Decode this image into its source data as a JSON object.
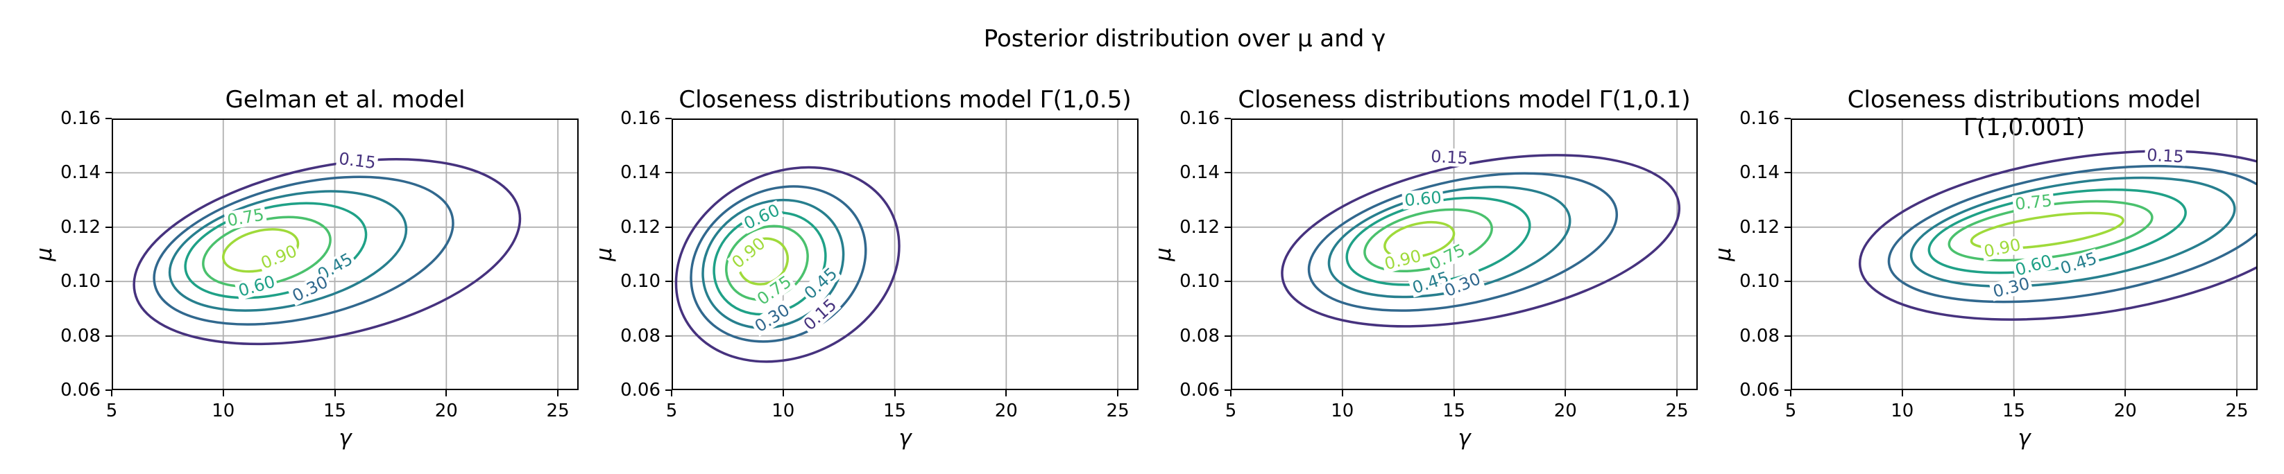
{
  "figure": {
    "suptitle": "Posterior distribution over μ and γ",
    "background": "#ffffff"
  },
  "chart_data": {
    "type": "contour",
    "suptitle": "Posterior distribution over μ and γ",
    "shared_axes": {
      "xlabel": "γ",
      "ylabel": "μ",
      "xlim": [
        5,
        25.93
      ],
      "ylim": [
        0.06,
        0.16
      ],
      "xtick_values": [
        5,
        10,
        15,
        20,
        25
      ],
      "xtick_labels": [
        "5",
        "10",
        "15",
        "20",
        "25"
      ],
      "ytick_values": [
        0.16,
        0.14,
        0.12,
        0.1,
        0.08,
        0.06
      ],
      "ytick_labels": [
        "0.16",
        "0.14",
        "0.12",
        "0.10",
        "0.08",
        "0.06"
      ],
      "grid": true,
      "grid_color": "#b0b0b0",
      "spine_color": "#000000",
      "tick_color": "#000000"
    },
    "levels": [
      {
        "value": 0.15,
        "label": "0.15",
        "color": "#46327e"
      },
      {
        "value": 0.3,
        "label": "0.30",
        "color": "#31688e"
      },
      {
        "value": 0.45,
        "label": "0.45",
        "color": "#277f8e"
      },
      {
        "value": 0.6,
        "label": "0.60",
        "color": "#1fa187"
      },
      {
        "value": 0.75,
        "label": "0.75",
        "color": "#4ac16d"
      },
      {
        "value": 0.9,
        "label": "0.90",
        "color": "#9fda3a"
      }
    ],
    "subplots": [
      {
        "title": "Gelman et al. model",
        "contours": [
          {
            "level": 0.15,
            "x_range": [
              6.0,
              23.3
            ],
            "y_range": [
              0.077,
              0.145
            ],
            "rotation_deg": -12
          },
          {
            "level": 0.3,
            "x_range": [
              6.9,
              20.3
            ],
            "y_range": [
              0.0842,
              0.1385
            ],
            "rotation_deg": -13
          },
          {
            "level": 0.45,
            "x_range": [
              7.6,
              18.2
            ],
            "y_range": [
              0.0893,
              0.1332
            ],
            "rotation_deg": -13
          },
          {
            "level": 0.6,
            "x_range": [
              8.3,
              16.4
            ],
            "y_range": [
              0.094,
              0.1288
            ],
            "rotation_deg": -13
          },
          {
            "level": 0.75,
            "x_range": [
              9.1,
              14.8
            ],
            "y_range": [
              0.0982,
              0.1237
            ],
            "rotation_deg": -14
          },
          {
            "level": 0.9,
            "x_range": [
              10.0,
              13.35
            ],
            "y_range": [
              0.1037,
              0.1192
            ],
            "rotation_deg": -14
          }
        ],
        "contour_labels": [
          {
            "text": "0.15",
            "x": 16.0,
            "y": 0.1445,
            "rotation_deg": 7
          },
          {
            "text": "0.75",
            "x": 11.0,
            "y": 0.1235,
            "rotation_deg": -10
          },
          {
            "text": "0.90",
            "x": 12.5,
            "y": 0.109,
            "rotation_deg": -22
          },
          {
            "text": "0.60",
            "x": 11.5,
            "y": 0.0982,
            "rotation_deg": -16
          },
          {
            "text": "0.45",
            "x": 15.0,
            "y": 0.1055,
            "rotation_deg": -30
          },
          {
            "text": "0.30",
            "x": 13.9,
            "y": 0.0972,
            "rotation_deg": -26
          }
        ]
      },
      {
        "title": "Closeness distributions model Γ(1,0.5)",
        "contours": [
          {
            "level": 0.15,
            "x_range": [
              5.2,
              15.2
            ],
            "y_range": [
              0.0705,
              0.142
            ],
            "rotation_deg": -27
          },
          {
            "level": 0.3,
            "x_range": [
              5.87,
              13.7
            ],
            "y_range": [
              0.0779,
              0.135
            ],
            "rotation_deg": -28
          },
          {
            "level": 0.45,
            "x_range": [
              6.4,
              12.7
            ],
            "y_range": [
              0.0829,
              0.13
            ],
            "rotation_deg": -29
          },
          {
            "level": 0.6,
            "x_range": [
              6.9,
              11.9
            ],
            "y_range": [
              0.0879,
              0.1254
            ],
            "rotation_deg": -29
          },
          {
            "level": 0.75,
            "x_range": [
              7.45,
              11.1
            ],
            "y_range": [
              0.0933,
              0.1204
            ],
            "rotation_deg": -30
          },
          {
            "level": 0.9,
            "x_range": [
              8.0,
              10.2
            ],
            "y_range": [
              0.099,
              0.1158
            ],
            "rotation_deg": -30
          }
        ],
        "contour_labels": [
          {
            "text": "0.60",
            "x": 9.05,
            "y": 0.1238,
            "rotation_deg": -25
          },
          {
            "text": "0.90",
            "x": 8.45,
            "y": 0.1105,
            "rotation_deg": -40
          },
          {
            "text": "0.75",
            "x": 9.6,
            "y": 0.0968,
            "rotation_deg": -35
          },
          {
            "text": "0.45",
            "x": 11.7,
            "y": 0.0993,
            "rotation_deg": -42
          },
          {
            "text": "0.30",
            "x": 9.5,
            "y": 0.0865,
            "rotation_deg": -32
          },
          {
            "text": "0.15",
            "x": 11.65,
            "y": 0.0878,
            "rotation_deg": -42
          }
        ]
      },
      {
        "title": "Closeness distributions model Γ(1,0.1)",
        "contours": [
          {
            "level": 0.15,
            "x_range": [
              7.3,
              25.1
            ],
            "y_range": [
              0.0835,
              0.1465
            ],
            "rotation_deg": -11
          },
          {
            "level": 0.3,
            "x_range": [
              8.5,
              22.3
            ],
            "y_range": [
              0.0893,
              0.1398
            ],
            "rotation_deg": -12
          },
          {
            "level": 0.45,
            "x_range": [
              9.4,
              20.2
            ],
            "y_range": [
              0.0943,
              0.1348
            ],
            "rotation_deg": -12
          },
          {
            "level": 0.6,
            "x_range": [
              10.2,
              18.4
            ],
            "y_range": [
              0.0988,
              0.1308
            ],
            "rotation_deg": -12
          },
          {
            "level": 0.75,
            "x_range": [
              11.0,
              16.7
            ],
            "y_range": [
              0.1038,
              0.1265
            ],
            "rotation_deg": -13
          },
          {
            "level": 0.9,
            "x_range": [
              11.9,
              15.0
            ],
            "y_range": [
              0.1088,
              0.1218
            ],
            "rotation_deg": -13
          }
        ],
        "contour_labels": [
          {
            "text": "0.15",
            "x": 14.8,
            "y": 0.1458,
            "rotation_deg": 3
          },
          {
            "text": "0.60",
            "x": 13.6,
            "y": 0.1305,
            "rotation_deg": -5
          },
          {
            "text": "0.90",
            "x": 12.7,
            "y": 0.108,
            "rotation_deg": -14
          },
          {
            "text": "0.75",
            "x": 14.7,
            "y": 0.109,
            "rotation_deg": -26
          },
          {
            "text": "0.45",
            "x": 13.95,
            "y": 0.0995,
            "rotation_deg": -18
          },
          {
            "text": "0.30",
            "x": 15.4,
            "y": 0.0988,
            "rotation_deg": -22
          }
        ]
      },
      {
        "title": "Closeness distributions model Γ(1,0.001)",
        "contours": [
          {
            "level": 0.15,
            "x_range": [
              8.1,
              28.5
            ],
            "y_range": [
              0.086,
              0.148
            ],
            "rotation_deg": -8
          },
          {
            "level": 0.3,
            "x_range": [
              9.4,
              26.6
            ],
            "y_range": [
              0.0925,
              0.1425
            ],
            "rotation_deg": -9
          },
          {
            "level": 0.45,
            "x_range": [
              10.4,
              24.9
            ],
            "y_range": [
              0.0982,
              0.1382
            ],
            "rotation_deg": -9
          },
          {
            "level": 0.6,
            "x_range": [
              11.2,
              22.7
            ],
            "y_range": [
              0.1032,
              0.1338
            ],
            "rotation_deg": -9
          },
          {
            "level": 0.75,
            "x_range": [
              12.1,
              21.2
            ],
            "y_range": [
              0.1078,
              0.1295
            ],
            "rotation_deg": -8
          },
          {
            "level": 0.9,
            "x_range": [
              13.1,
              19.9
            ],
            "y_range": [
              0.1122,
              0.1252
            ],
            "rotation_deg": -8
          }
        ],
        "contour_labels": [
          {
            "text": "0.15",
            "x": 21.8,
            "y": 0.1462,
            "rotation_deg": 3
          },
          {
            "text": "0.75",
            "x": 15.9,
            "y": 0.1292,
            "rotation_deg": -6
          },
          {
            "text": "0.90",
            "x": 14.5,
            "y": 0.1122,
            "rotation_deg": -12
          },
          {
            "text": "0.60",
            "x": 15.9,
            "y": 0.1058,
            "rotation_deg": -16
          },
          {
            "text": "0.45",
            "x": 17.9,
            "y": 0.1068,
            "rotation_deg": -18
          },
          {
            "text": "0.30",
            "x": 14.9,
            "y": 0.0978,
            "rotation_deg": -14
          }
        ]
      }
    ]
  }
}
